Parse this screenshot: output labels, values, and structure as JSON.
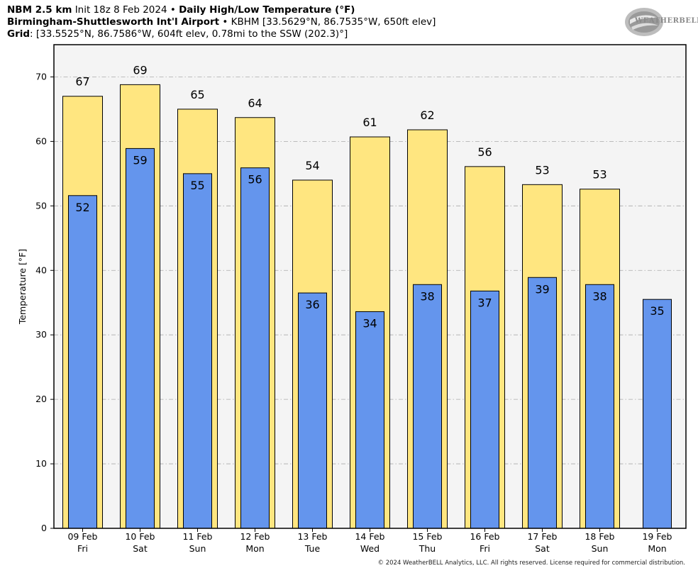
{
  "header": {
    "line1_bold_a": "NBM 2.5 km",
    "line1_normal": "Init 18z 8 Feb 2024",
    "line1_bold_b": "Daily High/Low Temperature (°F)",
    "line2_bold": "Birmingham-Shuttlesworth Int'l Airport",
    "line2_normal": "KBHM [33.5629°N, 86.7535°W, 650ft elev]",
    "line3_bold": "Grid",
    "line3_normal": ": [33.5525°N, 86.7586°W, 604ft elev, 0.78mi to the SSW (202.3)°]"
  },
  "logo": {
    "text": "WEATHERBELL"
  },
  "footer": "© 2024 WeatherBELL Analytics, LLC. All rights reserved. License required for commercial distribution.",
  "colors": {
    "high": "#FFE680",
    "low": "#6495ED",
    "plot_bg": "#F4F4F4",
    "grid": "#AAAAAA"
  },
  "chart_data": {
    "type": "bar",
    "ylabel": "Temperature [°F]",
    "ylim": [
      0,
      75
    ],
    "yticks": [
      0,
      10,
      20,
      30,
      40,
      50,
      60,
      70
    ],
    "grid": true,
    "categories": [
      "09 Feb",
      "10 Feb",
      "11 Feb",
      "12 Feb",
      "13 Feb",
      "14 Feb",
      "15 Feb",
      "16 Feb",
      "17 Feb",
      "18 Feb",
      "19 Feb"
    ],
    "weekdays": [
      "Fri",
      "Sat",
      "Sun",
      "Mon",
      "Tue",
      "Wed",
      "Thu",
      "Fri",
      "Sat",
      "Sun",
      "Mon"
    ],
    "series": [
      {
        "values": [
          67,
          68.8,
          65,
          63.7,
          54,
          60.7,
          61.8,
          56.1,
          53.3,
          52.6,
          null
        ],
        "labels": [
          "67",
          "69",
          "65",
          "64",
          "54",
          "61",
          "62",
          "56",
          "53",
          "53",
          ""
        ]
      },
      {
        "values": [
          51.6,
          58.9,
          55,
          55.9,
          36.5,
          33.6,
          37.8,
          36.8,
          38.9,
          37.8,
          35.5
        ],
        "labels": [
          "52",
          "59",
          "55",
          "56",
          "36",
          "34",
          "38",
          "37",
          "39",
          "38",
          "35"
        ]
      }
    ]
  }
}
